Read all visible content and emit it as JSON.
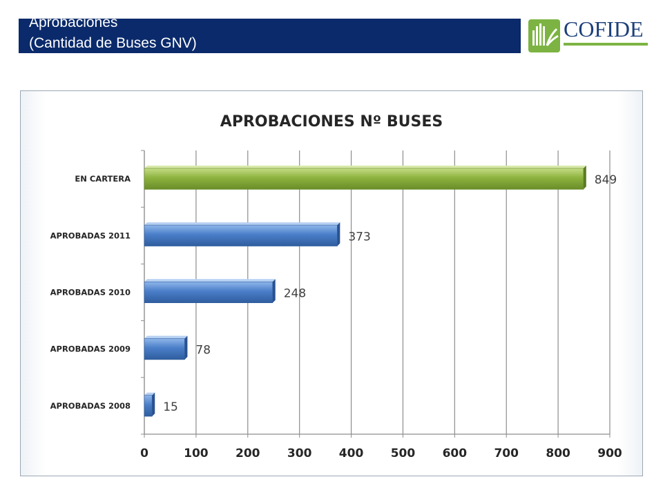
{
  "header": {
    "title_line1": "Aprobaciones",
    "title_line2": "(Cantidad de Buses GNV)"
  },
  "logo": {
    "text": "COFIDE",
    "icon": "cofide-logo-icon",
    "colors": {
      "text": "#1e3f7a",
      "green": "#7cb342"
    }
  },
  "colors": {
    "header_band": "#0a2a6b",
    "bar_highlight": "#8db33e",
    "bar_default": "#4a7ec8"
  },
  "chart_data": {
    "type": "bar",
    "orientation": "horizontal",
    "title": "APROBACIONES Nº BUSES",
    "xlabel": "",
    "ylabel": "",
    "categories": [
      "EN CARTERA",
      "APROBADAS 2011",
      "APROBADAS 2010",
      "APROBADAS 2009",
      "APROBADAS 2008"
    ],
    "values": [
      849,
      373,
      248,
      78,
      15
    ],
    "bar_colors": [
      "#8db33e",
      "#4a7ec8",
      "#4a7ec8",
      "#4a7ec8",
      "#4a7ec8"
    ],
    "xlim": [
      0,
      900
    ],
    "xticks": [
      "0",
      "100",
      "200",
      "300",
      "400",
      "500",
      "600",
      "700",
      "800",
      "900"
    ],
    "grid": true,
    "legend": "none"
  }
}
